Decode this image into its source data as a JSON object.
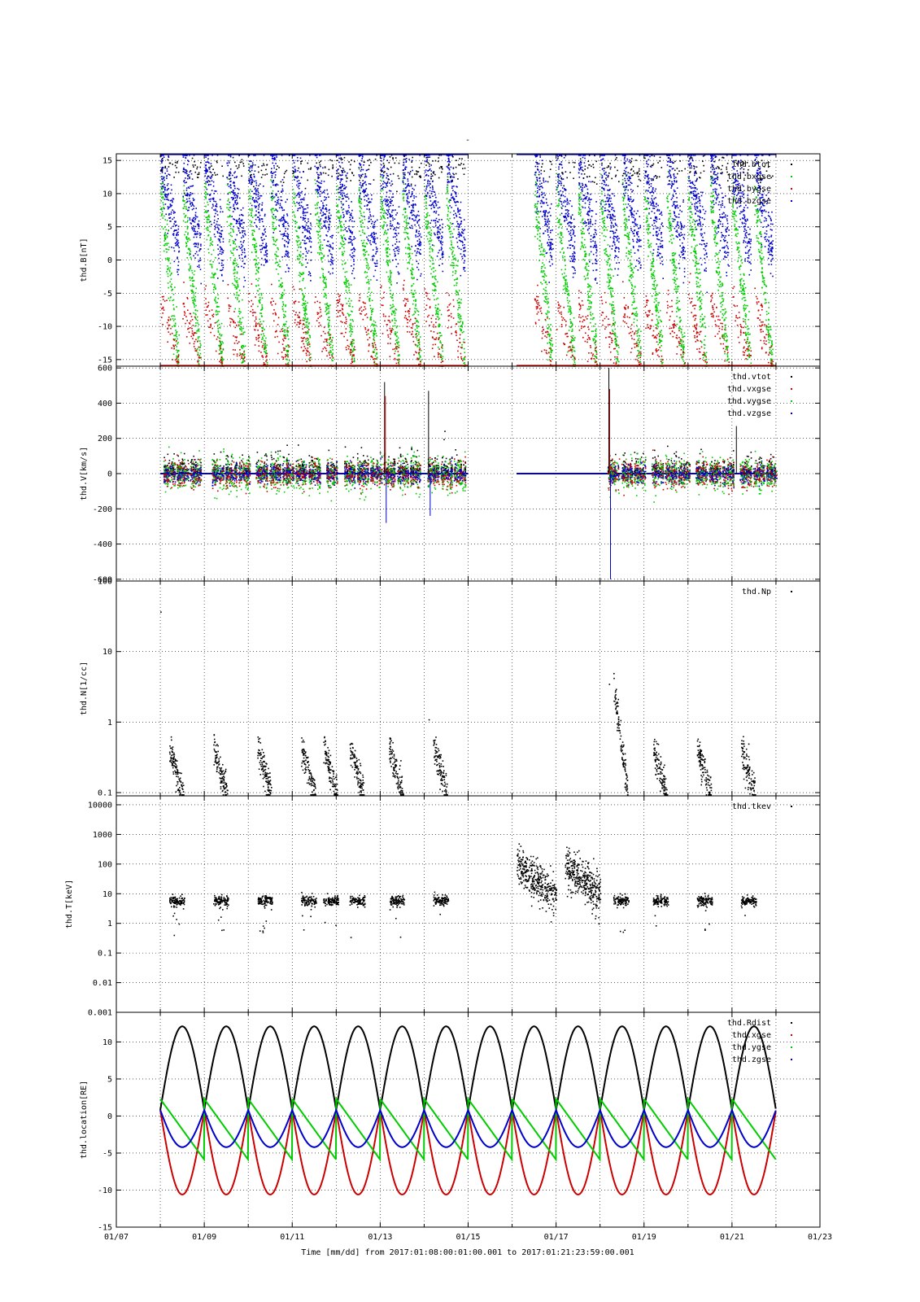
{
  "title": "-",
  "xlabel": "Time [mm/dd]  from 2017:01:08:00:01:00.001  to  2017:01:21:23:59:00.001",
  "x_tick_labels": [
    "01/07",
    "01/09",
    "01/11",
    "01/13",
    "01/15",
    "01/17",
    "01/19",
    "01/21",
    "01/23"
  ],
  "colors": {
    "black": "#000000",
    "red": "#cc0000",
    "green": "#00cc00",
    "blue": "#0000cc"
  },
  "chart_data": [
    {
      "type": "scatter",
      "ylabel": "thd.B[nT]",
      "yscale": "linear",
      "ylim": [
        -16,
        16
      ],
      "yticks": [
        15,
        10,
        5,
        0,
        -5,
        -10,
        -15
      ],
      "ytick_labels": [
        "15",
        "10",
        "5",
        "0",
        "-5",
        "-10",
        "-15"
      ],
      "xlim_days": [
        7,
        23
      ],
      "grid": true,
      "legend_position": "top-right",
      "series": [
        {
          "name": "thd.btot",
          "color": "#000000"
        },
        {
          "name": "thd.bxgse",
          "color": "#00cc00"
        },
        {
          "name": "thd.bygse",
          "color": "#cc0000"
        },
        {
          "name": "thd.bzgse",
          "color": "#0000cc"
        }
      ],
      "data_segments_days": [
        [
          8.0,
          15.0
        ],
        [
          16.1,
          22.0
        ]
      ],
      "orbit_period_days": 1.0
    },
    {
      "type": "scatter",
      "ylabel": "thd.V[km/s]",
      "yscale": "linear",
      "ylim": [
        -610,
        610
      ],
      "yticks": [
        600,
        400,
        200,
        0,
        -200,
        -400,
        -600
      ],
      "ytick_labels": [
        "600",
        "400",
        "200",
        "0",
        "-200",
        "-400",
        "-600"
      ],
      "xlim_days": [
        7,
        23
      ],
      "grid": true,
      "legend_position": "top-right",
      "series": [
        {
          "name": "thd.vtot",
          "color": "#000000"
        },
        {
          "name": "thd.vxgse",
          "color": "#cc0000"
        },
        {
          "name": "thd.vygse",
          "color": "#00cc00"
        },
        {
          "name": "thd.vzgse",
          "color": "#0000cc"
        }
      ],
      "spikes": [
        {
          "x": 13.1,
          "vtot": 520,
          "vx": 440,
          "vz": -280
        },
        {
          "x": 14.1,
          "vtot": 470,
          "vz": -240
        },
        {
          "x": 18.2,
          "vtot": 600,
          "vx": 480,
          "vz": -600
        },
        {
          "x": 21.1,
          "vtot": 270
        }
      ]
    },
    {
      "type": "scatter",
      "ylabel": "thd.N[1/cc]",
      "yscale": "log",
      "ylim": [
        0.09,
        100
      ],
      "yticks": [
        100,
        10,
        1,
        0.1
      ],
      "ytick_labels": [
        "100",
        "10",
        "1",
        "0.1"
      ],
      "xlim_days": [
        7,
        23
      ],
      "grid": true,
      "legend_position": "top-right",
      "series": [
        {
          "name": "thd.Np",
          "color": "#000000"
        }
      ],
      "notable_points": [
        {
          "x": 8.0,
          "y": 37
        },
        {
          "x": 18.2,
          "y": 3.5
        },
        {
          "x": 14.1,
          "y": 1.1
        }
      ]
    },
    {
      "type": "scatter",
      "ylabel": "thd.T[keV]",
      "yscale": "log",
      "ylim": [
        0.001,
        20000
      ],
      "yticks": [
        10000,
        1000,
        100,
        10,
        1,
        0.1,
        0.01,
        0.001
      ],
      "ytick_labels": [
        "10000",
        "1000",
        "100",
        "10",
        "1",
        "0.1",
        "0.01",
        "0.001"
      ],
      "xlim_days": [
        7,
        23
      ],
      "grid": true,
      "legend_position": "top-right",
      "series": [
        {
          "name": "thd.tkev",
          "color": "#000000"
        }
      ],
      "typical_level": 6,
      "hot_bursts": [
        [
          16.1,
          17.0,
          100
        ],
        [
          17.2,
          18.0,
          100
        ]
      ]
    },
    {
      "type": "line",
      "ylabel": "thd.location[RE]",
      "yscale": "linear",
      "ylim": [
        -15,
        14
      ],
      "yticks": [
        10,
        5,
        0,
        -5,
        -10,
        -15
      ],
      "ytick_labels": [
        "10",
        "5",
        "0",
        "-5",
        "-10",
        "-15"
      ],
      "xlim_days": [
        7,
        23
      ],
      "grid": true,
      "legend_position": "top-right",
      "series": [
        {
          "name": "thd.Rdist",
          "color": "#000000",
          "min": 0.8,
          "max": 12.1
        },
        {
          "name": "thd.xgse",
          "color": "#cc0000",
          "min": -10.6,
          "max": 0.8
        },
        {
          "name": "thd.ygse",
          "color": "#00cc00",
          "min": -5.9,
          "max": 2.3
        },
        {
          "name": "thd.zgse",
          "color": "#0000cc",
          "min": -4.2,
          "max": 0.8
        }
      ],
      "x_range_days": [
        8.0,
        22.0
      ],
      "orbit_period_days": 1.0
    }
  ]
}
